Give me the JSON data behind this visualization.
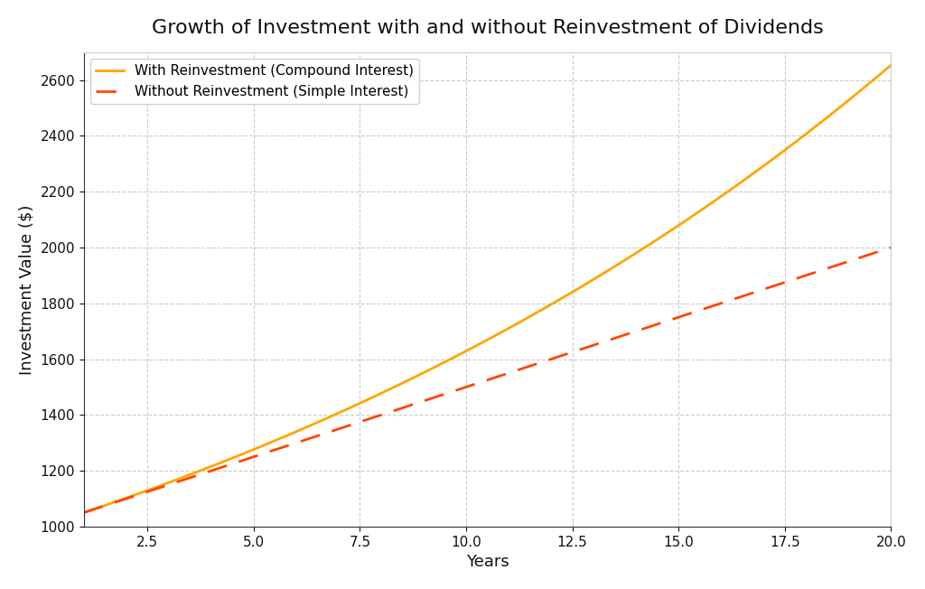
{
  "title": "Growth of Investment with and without Reinvestment of Dividends",
  "xlabel": "Years",
  "ylabel": "Investment Value ($)",
  "initial_investment": 1000,
  "annual_rate": 0.05,
  "years": 20,
  "compound_color": "#FFA500",
  "simple_color": "#FF4500",
  "compound_label": "With Reinvestment (Compound Interest)",
  "simple_label": "Without Reinvestment (Simple Interest)",
  "title_fontsize": 16,
  "label_fontsize": 13,
  "tick_fontsize": 11,
  "legend_fontsize": 11,
  "background_color": "#ffffff",
  "grid_color": "#cccccc",
  "ylim_min": 1000,
  "ylim_max": 2700,
  "xlim_min": 1,
  "xlim_max": 20
}
